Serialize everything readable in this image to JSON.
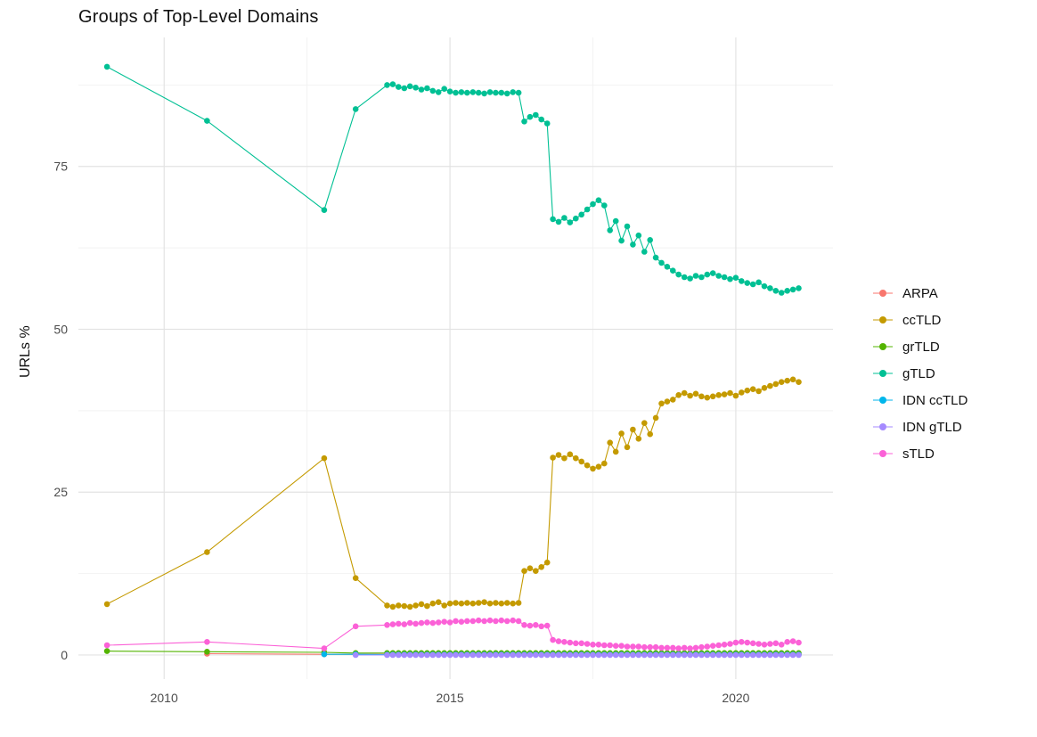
{
  "chart_data": {
    "type": "line",
    "title": "Groups of Top-Level Domains",
    "xlabel": "",
    "ylabel": "URLs %",
    "legend_position": "right",
    "grid": true,
    "xlim": [
      2008.5,
      2021.7
    ],
    "ylim": [
      -3.7,
      94.8
    ],
    "x_ticks": [
      2010,
      2015,
      2020
    ],
    "x_tick_labels": [
      "2010",
      "2015",
      "2020"
    ],
    "y_ticks": [
      0,
      25,
      50,
      75
    ],
    "y_tick_labels": [
      "0",
      "25",
      "50",
      "75"
    ],
    "x_minor": [
      2012.5,
      2017.5
    ],
    "y_minor": [
      12.5,
      37.5,
      62.5,
      87.5
    ],
    "colors": {
      "background": "#FFFFFF",
      "grid_major": "#E3E3E3",
      "grid_minor": "#F2F2F2",
      "axis_text": "#4D4D4D",
      "title_text": "#111111"
    },
    "x": [
      2009,
      2010.75,
      2012.8,
      2013.35,
      2013.9,
      2014,
      2014.1,
      2014.2,
      2014.3,
      2014.4,
      2014.5,
      2014.6,
      2014.7,
      2014.8,
      2014.9,
      2015,
      2015.1,
      2015.2,
      2015.3,
      2015.4,
      2015.5,
      2015.6,
      2015.7,
      2015.8,
      2015.9,
      2016,
      2016.1,
      2016.2,
      2016.3,
      2016.4,
      2016.5,
      2016.6,
      2016.7,
      2016.8,
      2016.9,
      2017,
      2017.1,
      2017.2,
      2017.3,
      2017.4,
      2017.5,
      2017.6,
      2017.7,
      2017.8,
      2017.9,
      2018,
      2018.1,
      2018.2,
      2018.3,
      2018.4,
      2018.5,
      2018.6,
      2018.7,
      2018.8,
      2018.9,
      2019,
      2019.1,
      2019.2,
      2019.3,
      2019.4,
      2019.5,
      2019.6,
      2019.7,
      2019.8,
      2019.9,
      2020,
      2020.1,
      2020.2,
      2020.3,
      2020.4,
      2020.5,
      2020.6,
      2020.7,
      2020.8,
      2020.9,
      2021,
      2021.1
    ],
    "series": [
      {
        "name": "ARPA",
        "color": "#F8766D",
        "y": [
          null,
          0.2,
          0.1,
          0.1,
          0.1,
          0.1,
          0.1,
          0.1,
          0.1,
          0.1,
          0.1,
          0.1,
          0.1,
          0.1,
          0.1,
          0.1,
          0.1,
          0.1,
          0.1,
          0.1,
          0.1,
          0.1,
          0.1,
          0.1,
          0.1,
          0.1,
          0.1,
          0.1,
          0.1,
          0.1,
          0.1,
          0.1,
          0.1,
          0.1,
          0.1,
          0.1,
          0.1,
          0.1,
          0.1,
          0.1,
          0.1,
          0.1,
          0.1,
          0.1,
          0.1,
          0.1,
          0.1,
          0.1,
          0.1,
          0.1,
          0.1,
          0.1,
          0.1,
          0.1,
          0.1,
          0.1,
          0.1,
          0.1,
          0.1,
          0.1,
          0.1,
          0.1,
          0.1,
          0.1,
          0.1,
          0.1,
          0.1,
          0.1,
          0.1,
          0.1,
          0.1,
          0.1,
          0.1,
          0.1,
          0.1,
          0.1,
          0.1
        ]
      },
      {
        "name": "ccTLD",
        "color": "#C49A00",
        "y": [
          7.8,
          15.8,
          30.2,
          11.8,
          7.6,
          7.4,
          7.6,
          7.5,
          7.4,
          7.6,
          7.8,
          7.5,
          7.9,
          8.1,
          7.6,
          7.9,
          8.0,
          7.9,
          8.0,
          7.9,
          8.0,
          8.1,
          7.9,
          8.0,
          7.9,
          8.0,
          7.9,
          8.0,
          12.9,
          13.3,
          12.9,
          13.5,
          14.2,
          30.3,
          30.7,
          30.2,
          30.8,
          30.2,
          29.7,
          29.1,
          28.6,
          28.9,
          29.4,
          32.6,
          31.2,
          34.0,
          31.9,
          34.6,
          33.2,
          35.6,
          33.9,
          36.4,
          38.6,
          38.9,
          39.2,
          39.9,
          40.2,
          39.8,
          40.1,
          39.7,
          39.5,
          39.7,
          39.9,
          40.0,
          40.2,
          39.8,
          40.3,
          40.6,
          40.8,
          40.5,
          41.0,
          41.3,
          41.6,
          41.9,
          42.1,
          42.3,
          41.9
        ]
      },
      {
        "name": "grTLD",
        "color": "#53B400",
        "y": [
          0.6,
          0.5,
          0.4,
          0.3,
          0.3,
          0.3,
          0.3,
          0.3,
          0.3,
          0.3,
          0.3,
          0.3,
          0.3,
          0.3,
          0.3,
          0.3,
          0.3,
          0.3,
          0.3,
          0.3,
          0.3,
          0.3,
          0.3,
          0.3,
          0.3,
          0.3,
          0.3,
          0.3,
          0.3,
          0.3,
          0.3,
          0.3,
          0.3,
          0.3,
          0.3,
          0.3,
          0.3,
          0.3,
          0.3,
          0.3,
          0.3,
          0.3,
          0.3,
          0.3,
          0.3,
          0.3,
          0.3,
          0.3,
          0.3,
          0.3,
          0.3,
          0.3,
          0.3,
          0.3,
          0.3,
          0.3,
          0.3,
          0.3,
          0.3,
          0.3,
          0.3,
          0.3,
          0.3,
          0.3,
          0.3,
          0.3,
          0.3,
          0.3,
          0.3,
          0.3,
          0.3,
          0.3,
          0.3,
          0.3,
          0.3,
          0.3,
          0.3
        ]
      },
      {
        "name": "gTLD",
        "color": "#00C094",
        "y": [
          90.3,
          82.0,
          68.3,
          83.8,
          87.5,
          87.6,
          87.2,
          87.0,
          87.3,
          87.1,
          86.8,
          87.0,
          86.6,
          86.4,
          86.9,
          86.5,
          86.3,
          86.4,
          86.3,
          86.4,
          86.3,
          86.2,
          86.4,
          86.3,
          86.3,
          86.2,
          86.4,
          86.3,
          81.9,
          82.6,
          82.9,
          82.2,
          81.6,
          66.9,
          66.5,
          67.1,
          66.4,
          67.0,
          67.6,
          68.4,
          69.2,
          69.8,
          69.0,
          65.2,
          66.6,
          63.6,
          65.8,
          63.0,
          64.4,
          61.9,
          63.7,
          61.0,
          60.2,
          59.6,
          59.0,
          58.4,
          58.0,
          57.8,
          58.2,
          58.0,
          58.4,
          58.6,
          58.2,
          58.0,
          57.7,
          57.9,
          57.4,
          57.1,
          56.9,
          57.2,
          56.6,
          56.3,
          55.9,
          55.6,
          55.9,
          56.1,
          56.3
        ]
      },
      {
        "name": "IDN ccTLD",
        "color": "#00B6EB",
        "y": [
          null,
          null,
          0.1,
          0.1,
          0.05,
          0.05,
          0.05,
          0.05,
          0.05,
          0.05,
          0.05,
          0.05,
          0.05,
          0.05,
          0.05,
          0.05,
          0.05,
          0.05,
          0.05,
          0.05,
          0.05,
          0.05,
          0.05,
          0.05,
          0.05,
          0.05,
          0.05,
          0.05,
          0.05,
          0.05,
          0.05,
          0.05,
          0.05,
          0.05,
          0.05,
          0.05,
          0.05,
          0.05,
          0.05,
          0.05,
          0.05,
          0.05,
          0.05,
          0.05,
          0.05,
          0.05,
          0.05,
          0.05,
          0.05,
          0.05,
          0.05,
          0.05,
          0.05,
          0.05,
          0.05,
          0.05,
          0.05,
          0.05,
          0.05,
          0.05,
          0.05,
          0.05,
          0.05,
          0.05,
          0.05,
          0.05,
          0.05,
          0.05,
          0.05,
          0.05,
          0.05,
          0.05,
          0.05,
          0.05,
          0.05,
          0.05,
          0.05
        ]
      },
      {
        "name": "IDN gTLD",
        "color": "#A58AFF",
        "y": [
          null,
          null,
          null,
          0,
          0,
          0,
          0,
          0,
          0,
          0,
          0,
          0,
          0,
          0,
          0,
          0,
          0,
          0,
          0,
          0,
          0,
          0,
          0,
          0,
          0,
          0,
          0,
          0,
          0,
          0,
          0,
          0,
          0,
          0,
          0,
          0,
          0,
          0,
          0,
          0,
          0,
          0,
          0,
          0,
          0,
          0,
          0,
          0,
          0,
          0,
          0,
          0,
          0,
          0,
          0,
          0,
          0,
          0,
          0,
          0,
          0,
          0,
          0,
          0,
          0,
          0,
          0,
          0,
          0,
          0,
          0,
          0,
          0,
          0,
          0,
          0,
          0
        ]
      },
      {
        "name": "sTLD",
        "color": "#FB61D7",
        "y": [
          1.5,
          2.0,
          1.0,
          4.4,
          4.6,
          4.7,
          4.8,
          4.7,
          4.9,
          4.8,
          4.9,
          5.0,
          4.9,
          5.0,
          5.1,
          5.0,
          5.2,
          5.1,
          5.2,
          5.2,
          5.3,
          5.2,
          5.3,
          5.2,
          5.3,
          5.2,
          5.3,
          5.2,
          4.6,
          4.5,
          4.6,
          4.4,
          4.5,
          2.3,
          2.1,
          2.0,
          1.9,
          1.8,
          1.8,
          1.7,
          1.6,
          1.6,
          1.5,
          1.5,
          1.4,
          1.4,
          1.3,
          1.3,
          1.3,
          1.2,
          1.2,
          1.2,
          1.1,
          1.1,
          1.1,
          1.0,
          1.1,
          1.0,
          1.1,
          1.2,
          1.3,
          1.4,
          1.5,
          1.6,
          1.7,
          1.9,
          2.0,
          1.9,
          1.8,
          1.7,
          1.6,
          1.7,
          1.8,
          1.6,
          2.0,
          2.1,
          1.9
        ]
      }
    ]
  }
}
